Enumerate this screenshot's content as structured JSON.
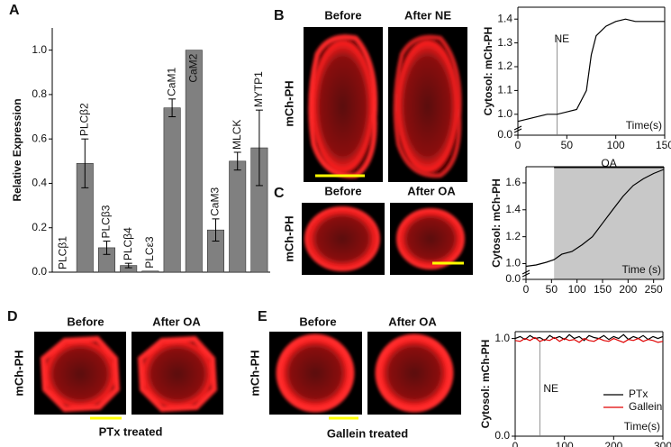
{
  "figure": {
    "panel_letters": [
      "A",
      "B",
      "C",
      "D",
      "E"
    ],
    "image_panels": [
      {
        "side_label": "mCh-PH",
        "before": "Before",
        "after": "After NE"
      },
      {
        "side_label": "mCh-PH",
        "before": "Before",
        "after": "After OA"
      },
      {
        "side_label": "mCh-PH",
        "before": "Before",
        "after": "After OA",
        "caption": "PTx treated"
      },
      {
        "side_label": "mCh-PH",
        "before": "Before",
        "after": "After OA",
        "caption": "Gallein treated"
      }
    ]
  },
  "chart_data": [
    {
      "type": "bar",
      "ylabel": "Relative Expression",
      "categories": [
        "PLCβ1",
        "PLCβ2",
        "PLCβ3",
        "PLCβ4",
        "PLCε3",
        "CaM1",
        "CaM2",
        "CaM3",
        "MLCK",
        "MYTP1"
      ],
      "values": [
        0.0,
        0.49,
        0.11,
        0.03,
        0.005,
        0.74,
        1.0,
        0.19,
        0.5,
        0.56
      ],
      "errors": [
        0,
        0.11,
        0.03,
        0.01,
        0,
        0.04,
        0,
        0.05,
        0.04,
        0.17
      ],
      "label_inside": [
        false,
        false,
        false,
        false,
        false,
        false,
        true,
        false,
        false,
        false
      ],
      "color": "#808080",
      "ylim": [
        0,
        1.1
      ],
      "yticks": [
        {
          "value": 0,
          "label": "0.0"
        },
        0.2,
        0.4,
        0.6,
        0.8,
        {
          "value": 1,
          "label": "1.0"
        }
      ]
    },
    {
      "type": "line",
      "ylabel": "Cytosol: mCh-PH",
      "xlabel": "Time(s)",
      "y_break": true,
      "x": [
        0,
        10,
        20,
        30,
        40,
        50,
        60,
        70,
        75,
        80,
        90,
        100,
        110,
        120,
        130,
        140,
        150
      ],
      "values": [
        0.97,
        0.98,
        0.99,
        1.0,
        1.0,
        1.01,
        1.02,
        1.1,
        1.25,
        1.33,
        1.37,
        1.39,
        1.4,
        1.39,
        1.39,
        1.39,
        1.39
      ],
      "color": "#000000",
      "xlim": [
        0,
        150
      ],
      "ylim": [
        0.95,
        1.45
      ],
      "xticks": [
        0,
        50,
        100,
        150
      ],
      "yticks": [
        {
          "value": 0,
          "label": "0.0"
        },
        {
          "value": 1,
          "label": "1.0"
        },
        1.1,
        1.2,
        1.3,
        1.4
      ],
      "annotation": {
        "text": "NE",
        "x": 40
      }
    },
    {
      "type": "line",
      "ylabel": "Cytosol: mCh-PH",
      "xlabel": "Time (s)",
      "y_break": true,
      "x": [
        0,
        20,
        40,
        55,
        70,
        90,
        110,
        130,
        150,
        170,
        190,
        210,
        230,
        250,
        270
      ],
      "values": [
        0.98,
        0.99,
        1.01,
        1.03,
        1.07,
        1.09,
        1.14,
        1.2,
        1.3,
        1.4,
        1.5,
        1.58,
        1.63,
        1.67,
        1.7
      ],
      "color": "#000000",
      "xlim": [
        0,
        270
      ],
      "ylim": [
        0.95,
        1.72
      ],
      "xticks": [
        0,
        50,
        100,
        150,
        200,
        250
      ],
      "yticks": [
        {
          "value": 0,
          "label": "0.0"
        },
        {
          "value": 1,
          "label": "1.0"
        },
        1.2,
        1.4,
        1.6
      ],
      "shade": {
        "text": "OA",
        "x": [
          55,
          270
        ]
      }
    },
    {
      "type": "line",
      "ylabel": "Cytosol: mCh-PH",
      "xlabel": "Time(s)",
      "x": [
        0,
        10,
        20,
        30,
        40,
        50,
        60,
        70,
        80,
        90,
        100,
        110,
        120,
        130,
        140,
        150,
        160,
        170,
        180,
        190,
        200,
        210,
        220,
        230,
        240,
        250,
        260,
        270,
        280,
        290,
        300
      ],
      "series": [
        {
          "name": "PTx",
          "color": "#000000",
          "values": [
            1.0,
            1.02,
            0.99,
            1.03,
            1.0,
            1.01,
            0.98,
            1.03,
            1.0,
            1.02,
            0.99,
            1.04,
            1.0,
            1.02,
            0.98,
            1.03,
            1.01,
            1.0,
            1.03,
            0.99,
            1.02,
            1.0,
            1.04,
            0.99,
            1.02,
            1.0,
            1.03,
            0.99,
            1.02,
            1.0,
            1.02
          ]
        },
        {
          "name": "Gallein",
          "color": "#e00000",
          "values": [
            0.98,
            0.97,
            1.0,
            0.98,
            1.01,
            0.97,
            0.99,
            0.98,
            1.01,
            0.97,
            1.0,
            0.98,
            0.99,
            0.96,
            1.0,
            0.98,
            0.97,
            1.0,
            0.98,
            0.97,
            1.0,
            0.98,
            0.96,
            0.99,
            0.98,
            1.0,
            0.97,
            0.99,
            0.98,
            0.96,
            0.97
          ]
        }
      ],
      "xlim": [
        0,
        300
      ],
      "ylim": [
        0,
        1.07
      ],
      "xticks": [
        0,
        100,
        200,
        300
      ],
      "yticks": [
        {
          "value": 0,
          "label": "0.0"
        },
        {
          "value": 1,
          "label": "1.0"
        }
      ],
      "legend": "right",
      "annotation": {
        "text": "NE",
        "x": 50
      }
    }
  ]
}
